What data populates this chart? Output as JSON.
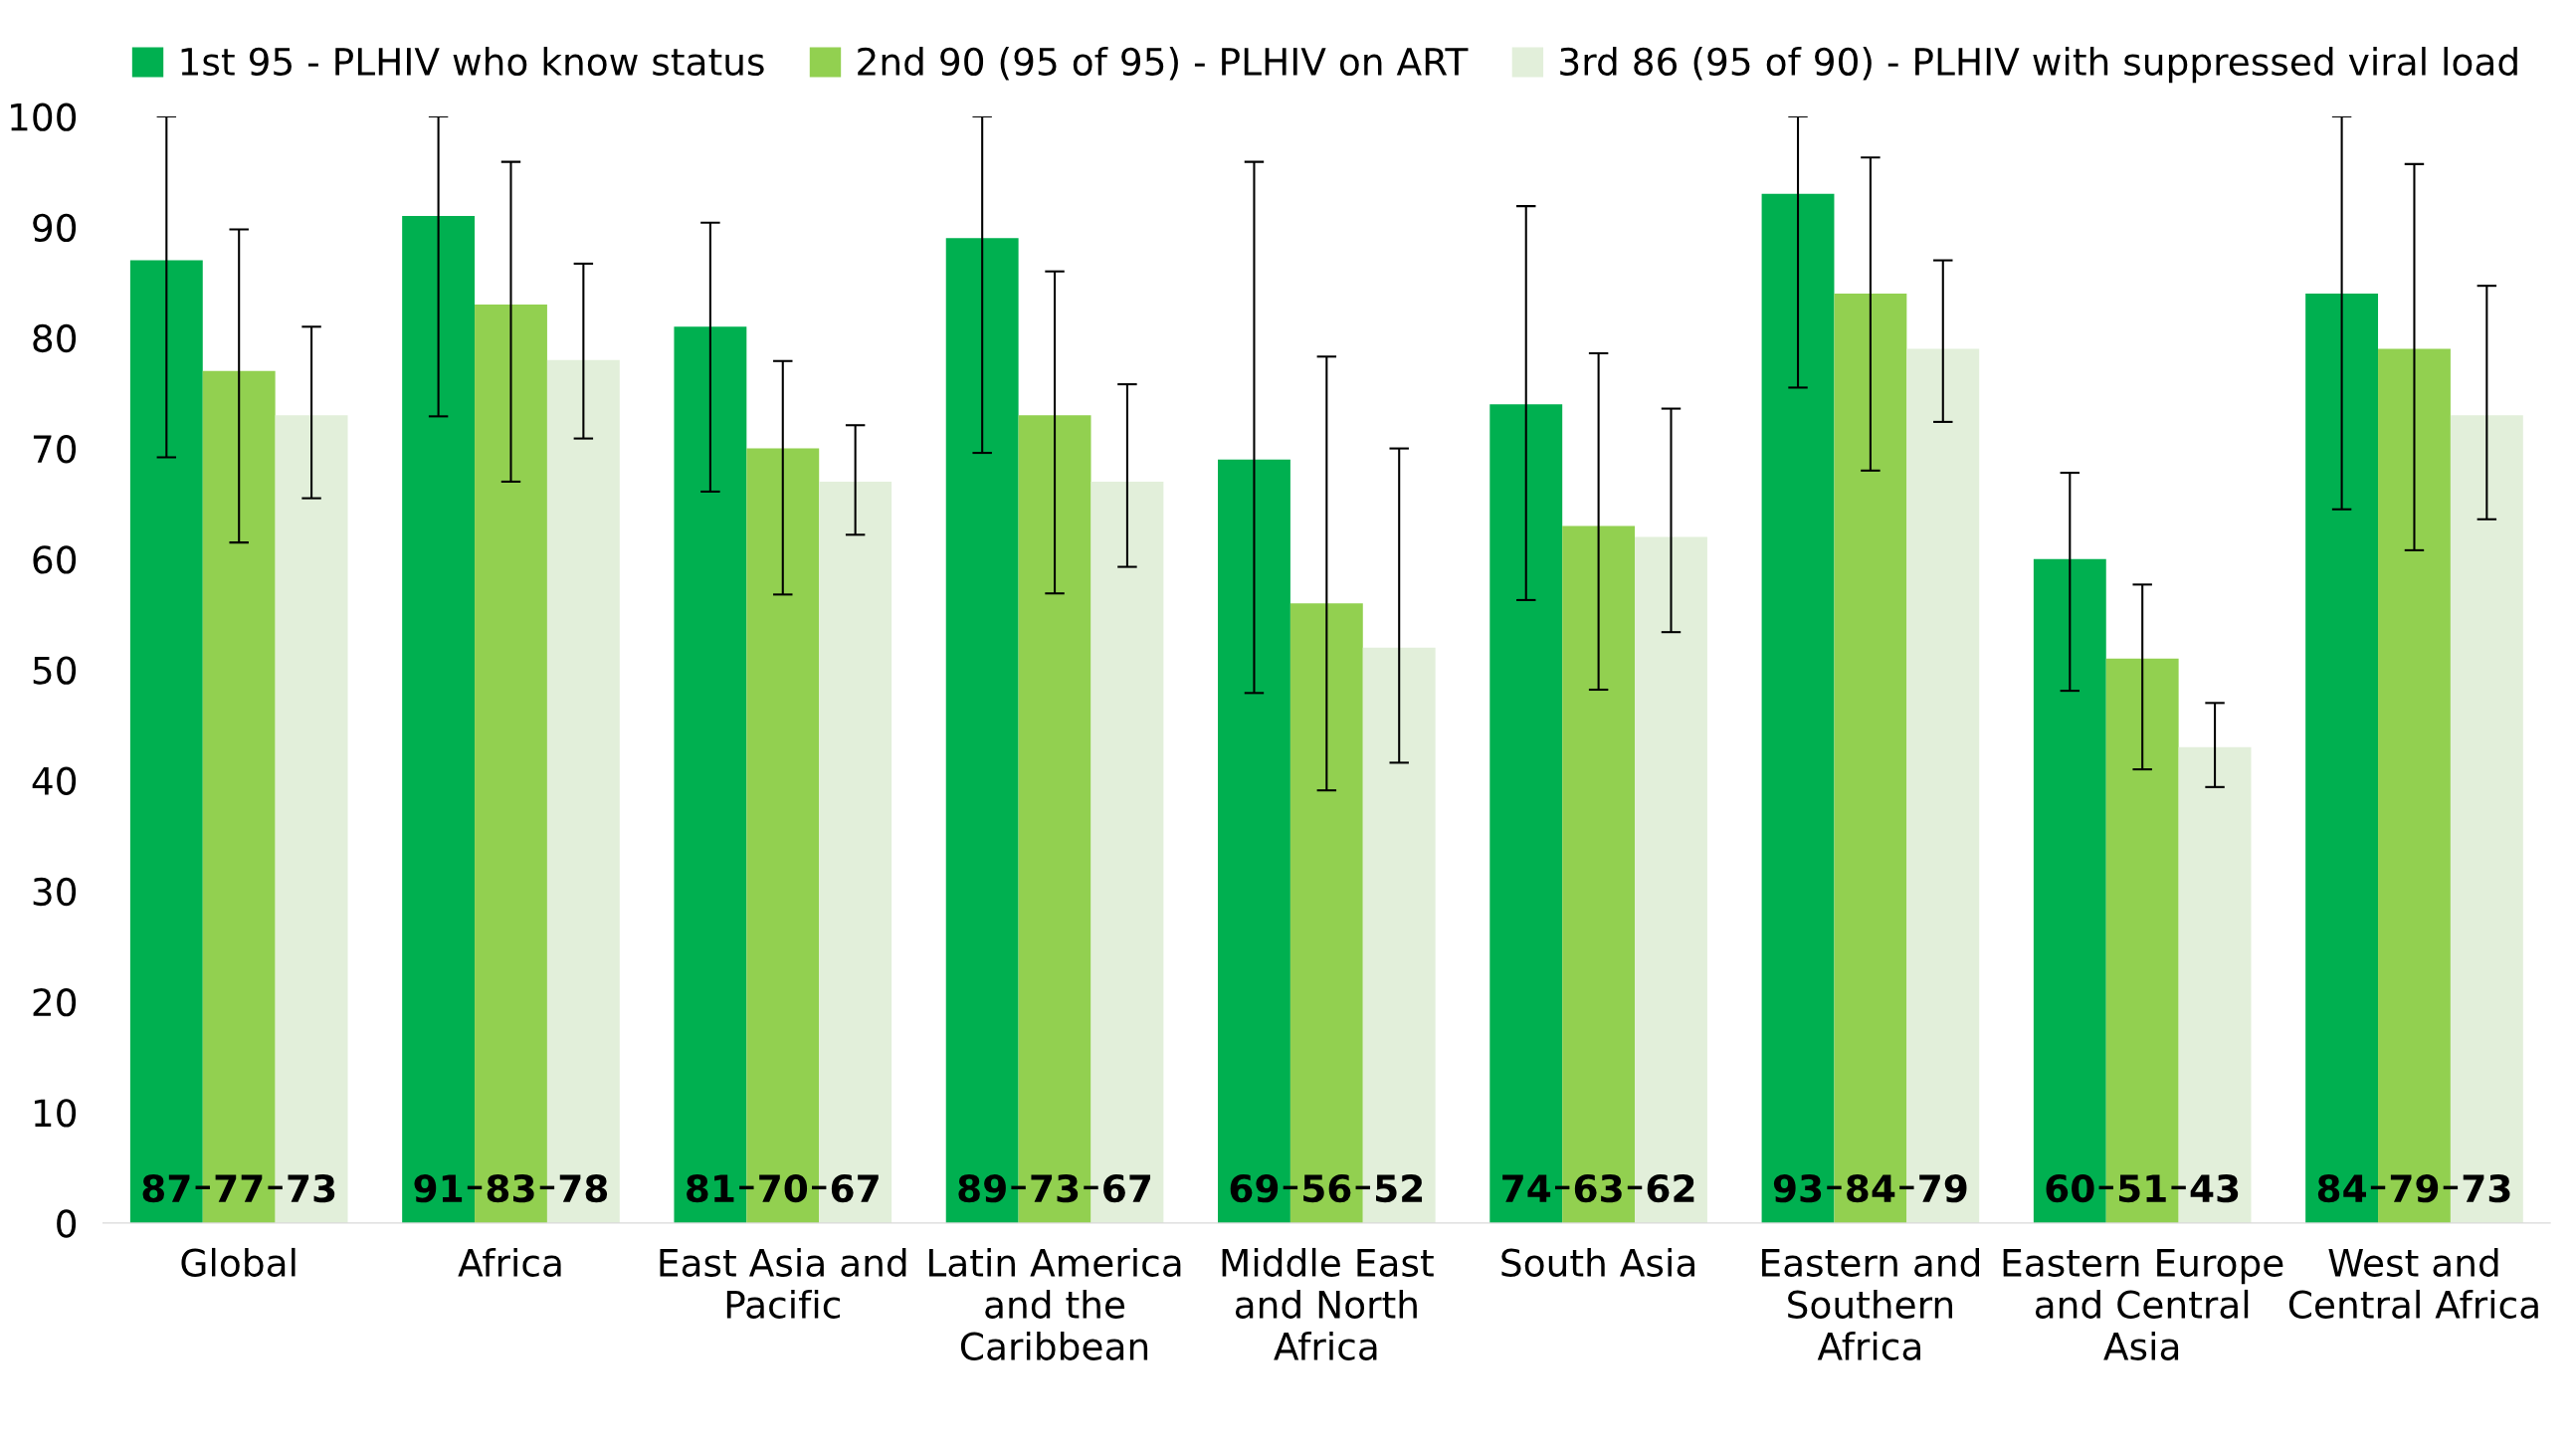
{
  "chart_data": {
    "type": "bar",
    "categories": [
      "Global",
      "Africa",
      "East Asia and Pacific",
      "Latin America and the Caribbean",
      "Middle East and North Africa",
      "South Asia",
      "Eastern and Southern Africa",
      "Eastern Europe and Central Asia",
      "West and Central Africa"
    ],
    "series": [
      {
        "name": "1st 95 - PLHIV who know status",
        "color": "#00b050",
        "values": [
          87,
          91,
          81,
          89,
          69,
          74,
          93,
          60,
          84
        ],
        "errors": [
          [
            69.2,
            100
          ],
          [
            72.9,
            100
          ],
          [
            66.1,
            90.4
          ],
          [
            69.6,
            100
          ],
          [
            47.9,
            95.9
          ],
          [
            56.3,
            91.9
          ],
          [
            75.5,
            100
          ],
          [
            48.1,
            67.8
          ],
          [
            64.5,
            100
          ]
        ]
      },
      {
        "name": "2nd 90 (95 of 95) - PLHIV on ART",
        "color": "#92d050",
        "values": [
          77,
          83,
          70,
          73,
          56,
          63,
          84,
          51,
          79
        ],
        "errors": [
          [
            61.5,
            89.8
          ],
          [
            67,
            95.9
          ],
          [
            56.8,
            77.9
          ],
          [
            56.9,
            86
          ],
          [
            39.1,
            78.3
          ],
          [
            48.2,
            78.6
          ],
          [
            68,
            96.3
          ],
          [
            41,
            57.7
          ],
          [
            60.8,
            95.7
          ]
        ]
      },
      {
        "name": "3rd 86 (95 of 90) - PLHIV with suppressed viral load",
        "color": "#e2efda",
        "values": [
          73,
          78,
          67,
          67,
          52,
          62,
          79,
          43,
          73
        ],
        "errors": [
          [
            65.5,
            81
          ],
          [
            70.9,
            86.7
          ],
          [
            62.2,
            72.1
          ],
          [
            59.3,
            75.8
          ],
          [
            41.6,
            70
          ],
          [
            53.4,
            73.6
          ],
          [
            72.4,
            87
          ],
          [
            39.4,
            47
          ],
          [
            63.6,
            84.7
          ]
        ]
      }
    ],
    "ylim": [
      0,
      100
    ],
    "yticks": [
      0,
      10,
      20,
      30,
      40,
      50,
      60,
      70,
      80,
      90,
      100
    ],
    "data_labels": true,
    "legend": "top",
    "grid": false
  }
}
